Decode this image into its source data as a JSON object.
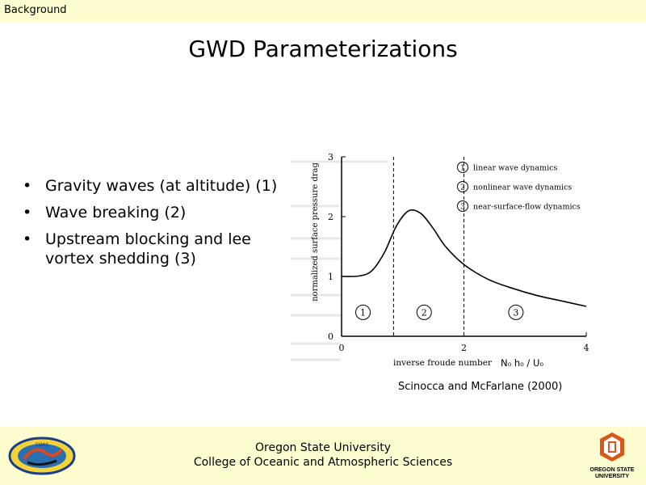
{
  "header": {
    "section": "Background"
  },
  "slide": {
    "title": "GWD Parameterizations",
    "bullets": [
      "Gravity waves (at altitude) (1)",
      "Wave breaking (2)",
      "Upstream blocking and lee vortex shedding (3)"
    ],
    "caption": "Scinocca and McFarlane (2000)"
  },
  "footer": {
    "line1": "Oregon State University",
    "line2": "College of Oceanic and Atmospheric Sciences",
    "osu_logo_text_1": "OREGON STATE",
    "osu_logo_text_2": "UNIVERSITY",
    "left_logo_text": "COAS"
  },
  "chart_data": {
    "type": "line",
    "ylabel": "normalized surface pressure drag",
    "xlabel": "inverse froude number",
    "xlabel_math": "N₀ h₀ / U₀",
    "x_ticks": [
      "0",
      "2",
      "4"
    ],
    "y_ticks": [
      "0",
      "1",
      "2",
      "3"
    ],
    "xlim": [
      0,
      4
    ],
    "ylim": [
      0,
      3
    ],
    "dashed_lines_x": [
      0.85,
      2.0
    ],
    "series": [
      {
        "name": "drag",
        "x": [
          0,
          0.3,
          0.5,
          0.7,
          0.9,
          1.1,
          1.3,
          1.5,
          1.7,
          2.0,
          2.4,
          2.8,
          3.2,
          3.6,
          4.0
        ],
        "y": [
          1.0,
          1.01,
          1.1,
          1.4,
          1.85,
          2.1,
          2.05,
          1.8,
          1.5,
          1.2,
          0.95,
          0.8,
          0.68,
          0.59,
          0.5
        ]
      }
    ],
    "regions": [
      {
        "label": "1",
        "x": 0.35,
        "y": 0.4
      },
      {
        "label": "2",
        "x": 1.35,
        "y": 0.4
      },
      {
        "label": "3",
        "x": 2.85,
        "y": 0.4
      }
    ],
    "legend": [
      {
        "num": "1",
        "text": "linear wave dynamics"
      },
      {
        "num": "2",
        "text": "nonlinear wave dynamics"
      },
      {
        "num": "3",
        "text": "near-surface-flow dynamics"
      }
    ]
  }
}
